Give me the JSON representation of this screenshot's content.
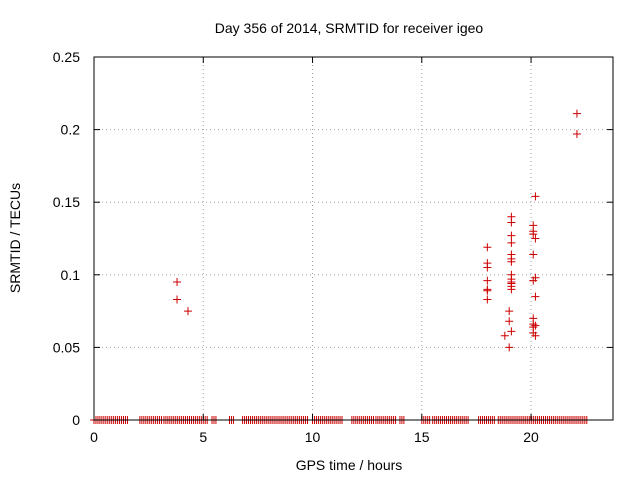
{
  "chart_data": {
    "type": "scatter",
    "title": "Day 356 of 2014, SRMTID for receiver igeo",
    "xlabel": "GPS time / hours",
    "ylabel": "SRMTID / TECUs",
    "xlim": [
      0,
      23.75
    ],
    "ylim": [
      0,
      0.25
    ],
    "x_ticks": [
      0,
      5,
      10,
      15,
      20
    ],
    "x_tick_labels": [
      "0",
      "5",
      "10",
      "15",
      "20"
    ],
    "y_ticks": [
      0,
      0.05,
      0.1,
      0.15,
      0.2,
      0.25
    ],
    "y_tick_labels": [
      "0",
      "0.05",
      "0.1",
      "0.15",
      "0.2",
      "0.25"
    ],
    "grid": true,
    "marker": "plus",
    "color": "#cc0000",
    "series": [
      {
        "name": "SRMTID",
        "points": [
          [
            3.8,
            0.095
          ],
          [
            3.8,
            0.083
          ],
          [
            4.3,
            0.075
          ],
          [
            18.0,
            0.119
          ],
          [
            18.0,
            0.108
          ],
          [
            18.0,
            0.105
          ],
          [
            18.0,
            0.096
          ],
          [
            18.0,
            0.09
          ],
          [
            18.0,
            0.089
          ],
          [
            18.0,
            0.083
          ],
          [
            18.8,
            0.058
          ],
          [
            19.0,
            0.05
          ],
          [
            19.0,
            0.068
          ],
          [
            19.0,
            0.075
          ],
          [
            19.1,
            0.14
          ],
          [
            19.1,
            0.136
          ],
          [
            19.1,
            0.127
          ],
          [
            19.1,
            0.122
          ],
          [
            19.1,
            0.114
          ],
          [
            19.1,
            0.111
          ],
          [
            19.1,
            0.109
          ],
          [
            19.1,
            0.1
          ],
          [
            19.1,
            0.097
          ],
          [
            19.1,
            0.095
          ],
          [
            19.1,
            0.094
          ],
          [
            19.1,
            0.092
          ],
          [
            19.1,
            0.09
          ],
          [
            19.1,
            0.061
          ],
          [
            20.1,
            0.134
          ],
          [
            20.1,
            0.13
          ],
          [
            20.1,
            0.128
          ],
          [
            20.1,
            0.114
          ],
          [
            20.1,
            0.096
          ],
          [
            20.1,
            0.07
          ],
          [
            20.1,
            0.066
          ],
          [
            20.1,
            0.064
          ],
          [
            20.1,
            0.06
          ],
          [
            20.2,
            0.154
          ],
          [
            20.2,
            0.125
          ],
          [
            20.2,
            0.098
          ],
          [
            20.2,
            0.085
          ],
          [
            20.2,
            0.065
          ],
          [
            20.2,
            0.058
          ],
          [
            22.1,
            0.211
          ],
          [
            22.1,
            0.197
          ]
        ],
        "zero_segments": [
          [
            0.0,
            1.6
          ],
          [
            2.1,
            3.1
          ],
          [
            3.2,
            5.2
          ],
          [
            5.4,
            5.6
          ],
          [
            6.2,
            6.4
          ],
          [
            6.8,
            9.8
          ],
          [
            10.0,
            11.4
          ],
          [
            11.8,
            12.8
          ],
          [
            12.9,
            13.8
          ],
          [
            14.0,
            14.2
          ],
          [
            15.0,
            15.4
          ],
          [
            15.5,
            17.2
          ],
          [
            17.6,
            18.4
          ],
          [
            18.5,
            22.6
          ]
        ],
        "zero_value": 0
      }
    ]
  }
}
